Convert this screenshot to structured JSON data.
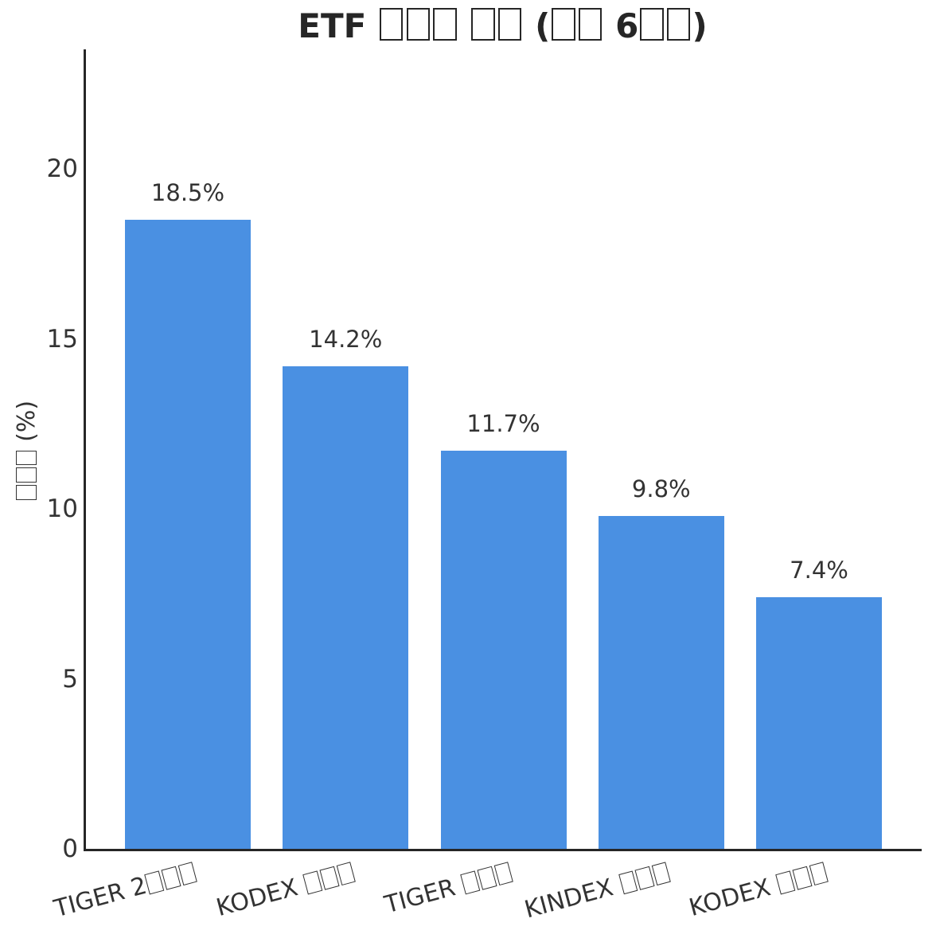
{
  "colors": {
    "bar": "#4a90e2",
    "axis": "#262626",
    "text": "#333333"
  },
  "chart_data": {
    "type": "bar",
    "title": "ETF □□□ □□ (□□ 6□□)",
    "ylabel": "□□□ (%)",
    "xlabel": "",
    "categories": [
      "TIGER 2□□□",
      "KODEX □□□",
      "TIGER □□□",
      "KINDEX □□□",
      "KODEX □□□"
    ],
    "values": [
      18.5,
      14.2,
      11.7,
      9.8,
      7.4
    ],
    "value_labels": [
      "18.5%",
      "14.2%",
      "11.7%",
      "9.8%",
      "7.4%"
    ],
    "yticks": [
      0,
      5,
      10,
      15,
      20
    ],
    "ytick_labels": [
      "0",
      "5",
      "10",
      "15",
      "20"
    ],
    "ylim": [
      0,
      23.5
    ],
    "grid": false,
    "legend_position": "none",
    "bar_color": "#4a90e2"
  }
}
